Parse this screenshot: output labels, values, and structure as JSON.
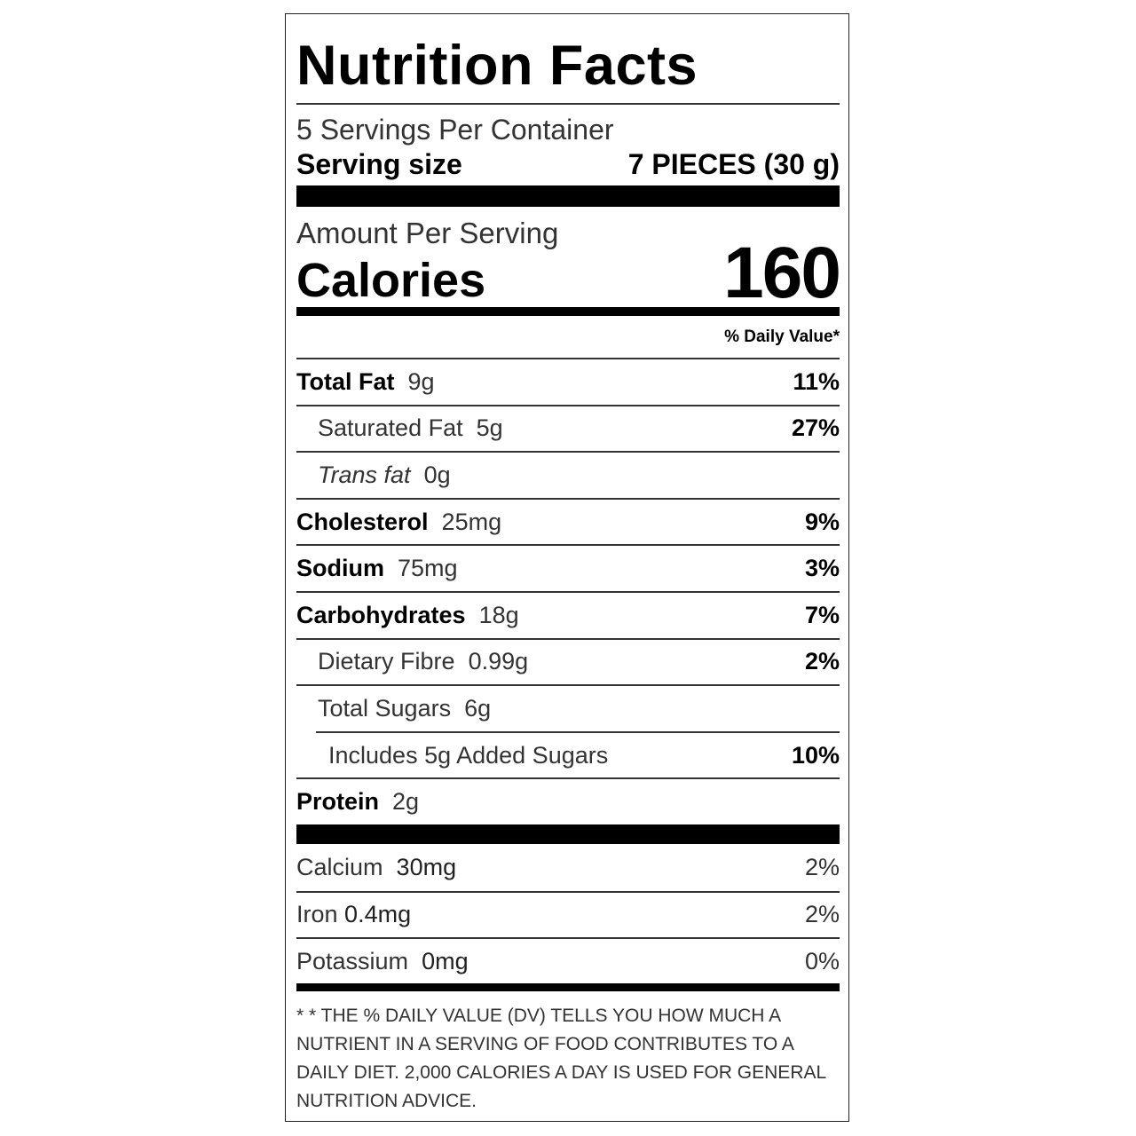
{
  "title": "Nutrition Facts",
  "servings_per_container": "5 Servings Per Container",
  "serving_size": {
    "label": "Serving size",
    "value": "7 PIECES (30 g)"
  },
  "amount_per_serving": "Amount Per Serving",
  "calories": {
    "label": "Calories",
    "value": "160"
  },
  "daily_value_header": "% Daily Value*",
  "nutrients": [
    {
      "name": "Total Fat",
      "amount": "9g",
      "dv": "11%"
    },
    {
      "name": "Saturated Fat",
      "amount": "5g",
      "dv": "27%"
    },
    {
      "name": "Trans fat",
      "amount": "0g",
      "dv": ""
    },
    {
      "name": "Cholesterol",
      "amount": "25mg",
      "dv": "9%"
    },
    {
      "name": "Sodium",
      "amount": "75mg",
      "dv": "3%"
    },
    {
      "name": "Carbohydrates",
      "amount": "18g",
      "dv": "7%"
    },
    {
      "name": "Dietary Fibre",
      "amount": "0.99g",
      "dv": "2%"
    },
    {
      "name": "Total Sugars",
      "amount": "6g",
      "dv": ""
    },
    {
      "name": "Includes 5g Added Sugars",
      "amount": "",
      "dv": "10%"
    },
    {
      "name": "Protein",
      "amount": "2g",
      "dv": ""
    }
  ],
  "minerals": [
    {
      "name": "Calcium",
      "amount": "30mg",
      "dv": "2%"
    },
    {
      "name": "Iron",
      "amount": "0.4mg",
      "dv": "2%"
    },
    {
      "name": "Potassium",
      "amount": "0mg",
      "dv": "0%"
    }
  ],
  "footnote": "* * THE % DAILY VALUE (DV) TELLS YOU HOW MUCH A NUTRIENT IN A SERVING OF FOOD CONTRIBUTES TO A DAILY DIET. 2,000 CALORIES A DAY IS USED FOR GENERAL NUTRITION ADVICE."
}
